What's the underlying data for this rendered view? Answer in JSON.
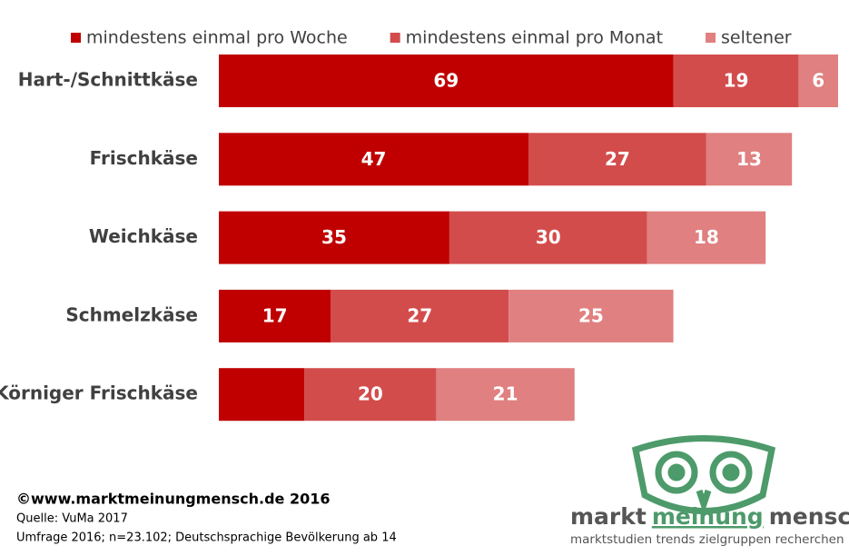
{
  "chart_data": {
    "type": "stacked-bar-horizontal",
    "categories": [
      "Hart-/Schnittkäse",
      "Frischkäse",
      "Weichkäse",
      "Schmelzkäse",
      "Körniger Frischkäse"
    ],
    "series": [
      {
        "name": "mindestens einmal pro Woche",
        "color": "#c00000",
        "values": [
          69,
          47,
          35,
          17,
          13
        ],
        "value_labels": [
          "69",
          "47",
          "35",
          "17",
          null
        ]
      },
      {
        "name": "mindestens einmal pro Monat",
        "color": "#d34c4c",
        "values": [
          19,
          27,
          30,
          27,
          20
        ]
      },
      {
        "name": "seltener",
        "color": "#e08080",
        "values": [
          6,
          13,
          18,
          25,
          21
        ]
      }
    ],
    "legend": "top"
  },
  "footer": {
    "copyright": "©www.marktmeinungmensch.de 2016",
    "source": "Quelle: VuMa 2017",
    "survey": "Umfrage 2016; n=23.102; Deutschsprachige Bevölkerung ab 14"
  },
  "logo": {
    "part1": "markt",
    "part2": "meinung",
    "part3": "mensch",
    "tagline": "marktstudien trends zielgruppen recherchen"
  }
}
